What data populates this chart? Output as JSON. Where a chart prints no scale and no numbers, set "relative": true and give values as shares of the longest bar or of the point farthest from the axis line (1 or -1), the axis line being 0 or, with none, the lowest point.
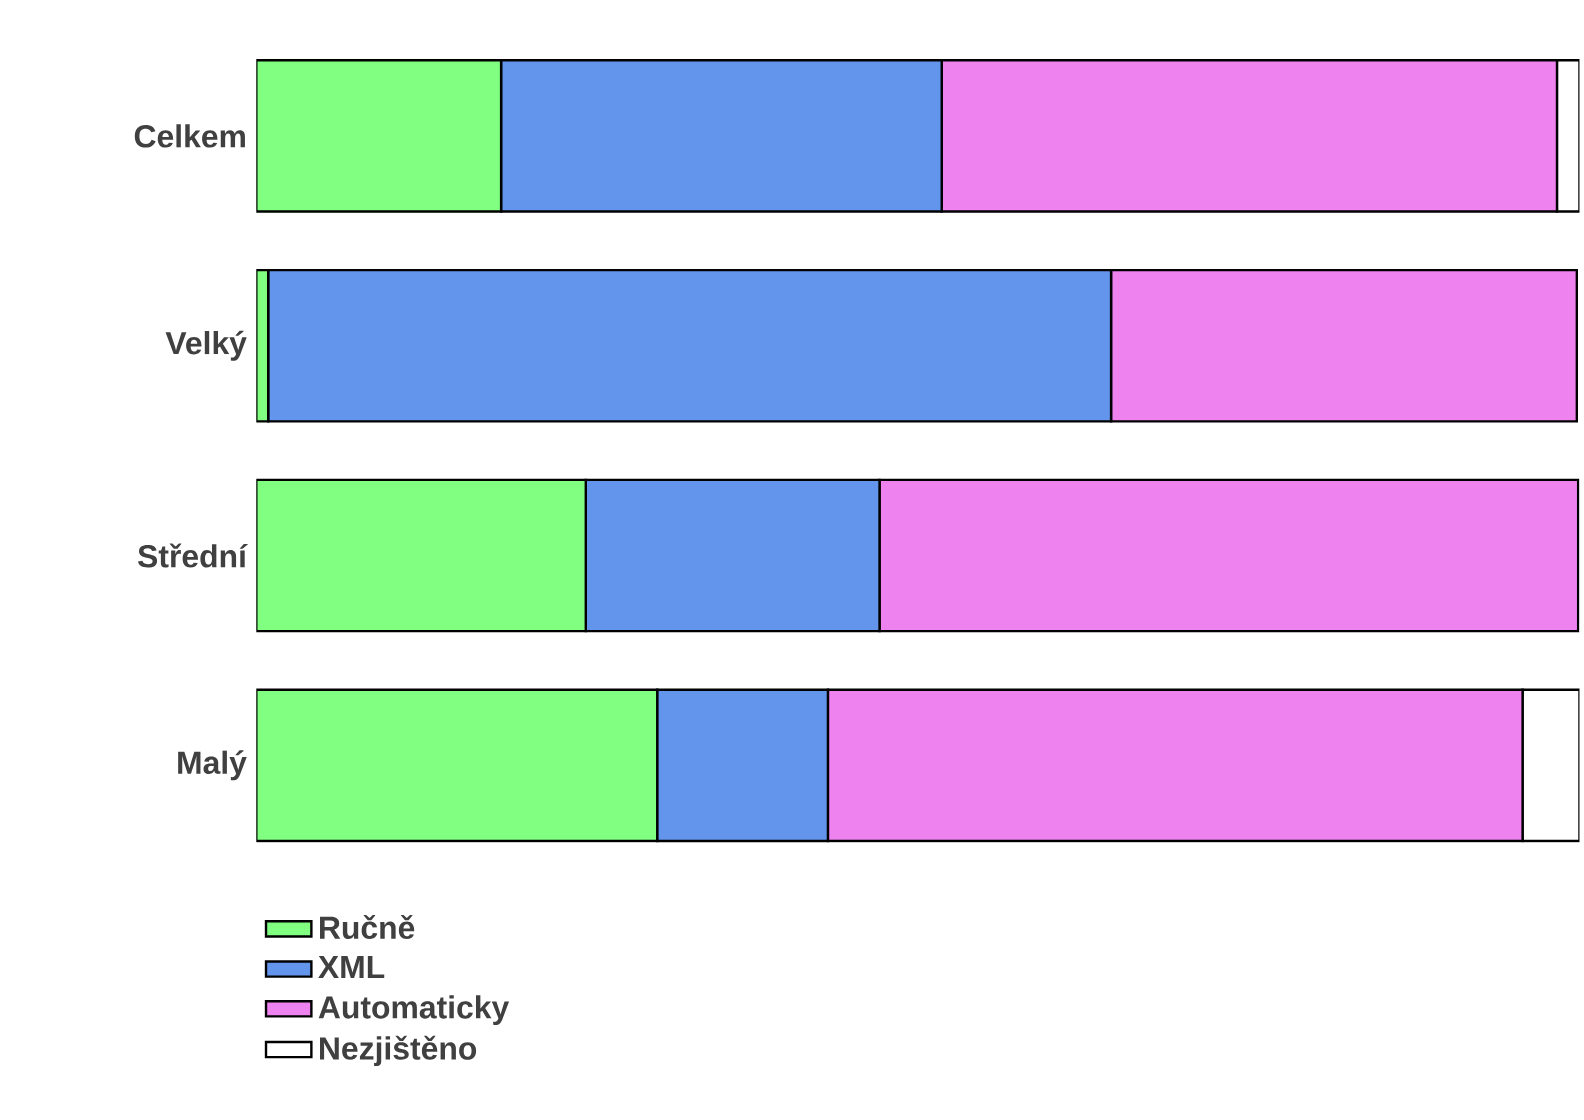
{
  "chart_data": {
    "type": "bar",
    "orientation": "horizontal",
    "stacked": true,
    "relative": true,
    "categories": [
      "Celkem",
      "Velký",
      "Střední",
      "Malý"
    ],
    "series": [
      {
        "name": "Ručně",
        "color": "#80ff80",
        "values": [
          0.185,
          0.009,
          0.249,
          0.303
        ]
      },
      {
        "name": "XML",
        "color": "#6495ed",
        "values": [
          0.333,
          0.637,
          0.222,
          0.129
        ]
      },
      {
        "name": "Automaticky",
        "color": "#ee82ee",
        "values": [
          0.465,
          0.352,
          0.528,
          0.525
        ]
      },
      {
        "name": "Nezjištěno",
        "color": "#ffffff",
        "values": [
          0.017,
          null,
          null,
          0.043
        ]
      }
    ],
    "legend": "bottom left"
  }
}
